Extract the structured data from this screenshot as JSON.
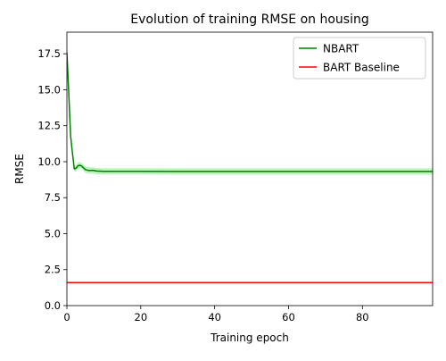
{
  "chart_data": {
    "type": "line",
    "title": "Evolution of training RMSE on housing",
    "xlabel": "Training epoch",
    "ylabel": "RMSE",
    "xlim": [
      0,
      99
    ],
    "ylim": [
      0,
      19
    ],
    "xticks": [
      0,
      20,
      40,
      60,
      80
    ],
    "xtick_labels": [
      "0",
      "20",
      "40",
      "60",
      "80"
    ],
    "yticks": [
      0,
      2.5,
      5,
      7.5,
      10,
      12.5,
      15,
      17.5
    ],
    "ytick_labels": [
      "0.0",
      "2.5",
      "5.0",
      "7.5",
      "10.0",
      "12.5",
      "15.0",
      "17.5"
    ],
    "grid": false,
    "legend_position": "upper right",
    "series": [
      {
        "name": "NBART",
        "color": "#008000",
        "band_color": "#90ee90",
        "band_halfwidth": 0.22,
        "x": [
          0,
          0.5,
          1,
          1.5,
          2,
          2.5,
          3,
          3.5,
          4,
          5,
          6,
          7,
          8,
          10,
          15,
          20,
          30,
          40,
          50,
          60,
          70,
          80,
          90,
          99
        ],
        "y": [
          17.6,
          14.8,
          11.8,
          10.6,
          9.5,
          9.55,
          9.72,
          9.75,
          9.7,
          9.45,
          9.38,
          9.4,
          9.35,
          9.33,
          9.33,
          9.33,
          9.32,
          9.32,
          9.32,
          9.32,
          9.32,
          9.32,
          9.32,
          9.32
        ]
      },
      {
        "name": "BART Baseline",
        "color": "#ff0000",
        "x": [
          0,
          99
        ],
        "y": [
          1.6,
          1.6
        ]
      }
    ]
  }
}
